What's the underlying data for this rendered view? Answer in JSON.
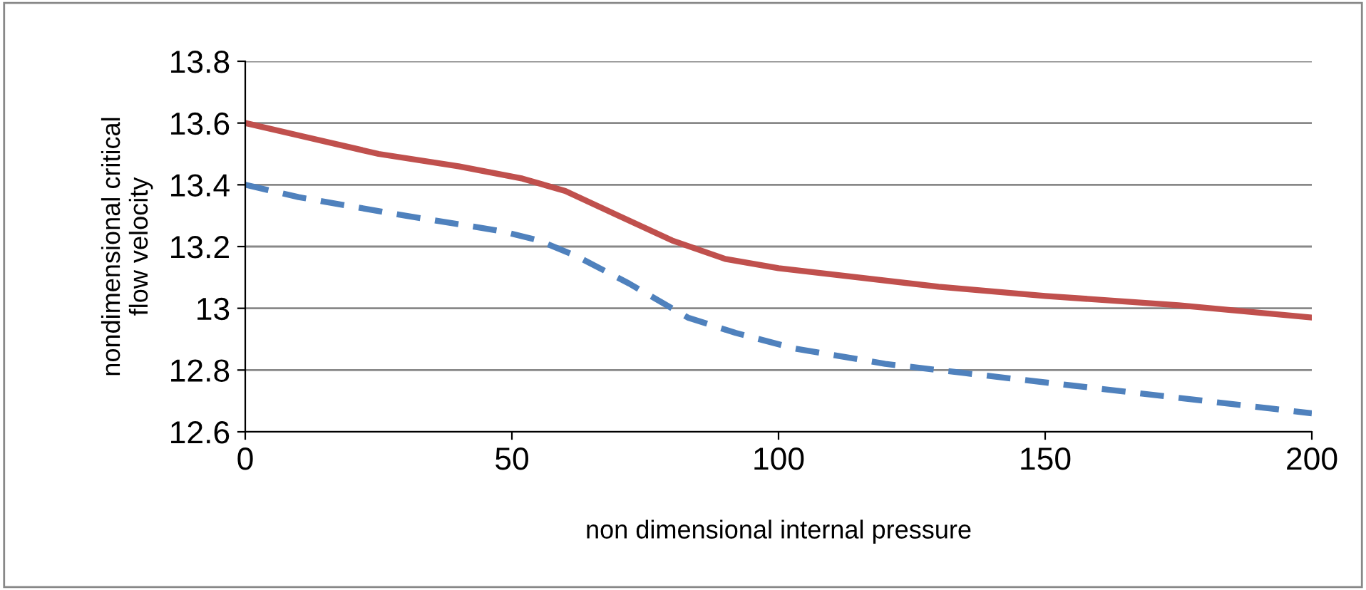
{
  "chart_data": {
    "type": "line",
    "xlabel": "non dimensional internal pressure",
    "ylabel": "nondimensional critical\nflow velocity",
    "xlim": [
      0,
      200
    ],
    "xticks": [
      0,
      50,
      100,
      150,
      200
    ],
    "ylim": [
      12.6,
      13.8
    ],
    "yticks": [
      {
        "value": 12.6,
        "label": "12.6"
      },
      {
        "value": 12.8,
        "label": "12.8"
      },
      {
        "value": 13,
        "label": "13"
      },
      {
        "value": 13.2,
        "label": "13.2"
      },
      {
        "value": 13.4,
        "label": "13.4"
      },
      {
        "value": 13.6,
        "label": "13.6"
      },
      {
        "value": 13.8,
        "label": "13.8"
      }
    ],
    "grid": "y",
    "legend": false,
    "marker": "none",
    "series": [
      {
        "color": "#c0504d",
        "line_style": "solid",
        "x": [
          0,
          10,
          25,
          40,
          52,
          60,
          70,
          80,
          90,
          100,
          115,
          130,
          150,
          175,
          200
        ],
        "values": [
          13.6,
          13.56,
          13.5,
          13.46,
          13.42,
          13.38,
          13.3,
          13.22,
          13.16,
          13.13,
          13.1,
          13.07,
          13.04,
          13.01,
          12.97
        ]
      },
      {
        "color": "#4f81bd",
        "line_style": "dashed",
        "x": [
          0,
          10,
          30,
          48,
          55,
          62,
          72,
          83,
          92,
          103,
          120,
          135,
          155,
          175,
          200
        ],
        "values": [
          13.4,
          13.36,
          13.3,
          13.25,
          13.22,
          13.17,
          13.08,
          12.97,
          12.92,
          12.87,
          12.82,
          12.79,
          12.75,
          12.71,
          12.66
        ]
      }
    ]
  }
}
